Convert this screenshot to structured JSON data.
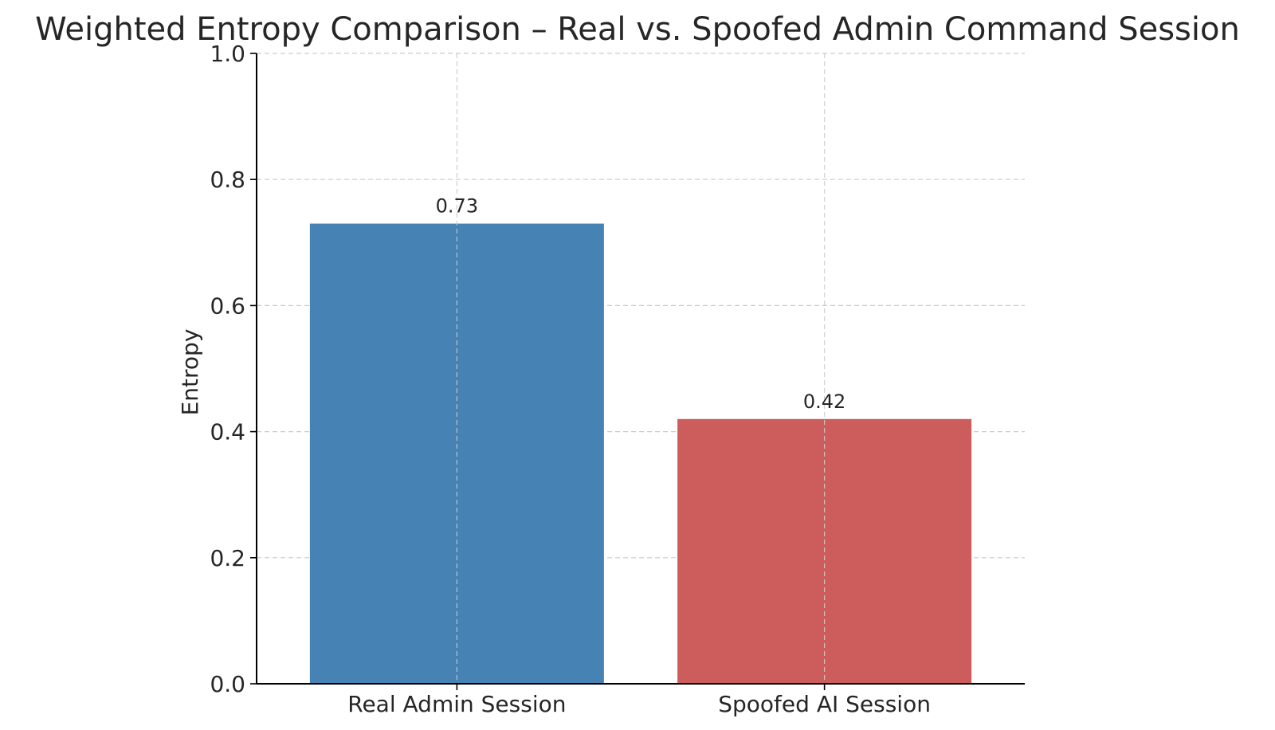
{
  "chart_data": {
    "type": "bar",
    "title": "Weighted Entropy Comparison – Real vs. Spoofed Admin Command Session",
    "xlabel": "",
    "ylabel": "Entropy",
    "categories": [
      "Real Admin Session",
      "Spoofed AI Session"
    ],
    "values": [
      0.73,
      0.42
    ],
    "value_labels": [
      "0.73",
      "0.42"
    ],
    "colors": [
      "#4682b4",
      "#cd5c5c"
    ],
    "ylim": [
      0,
      1.0
    ],
    "yticks": [
      0.0,
      0.2,
      0.4,
      0.6,
      0.8,
      1.0
    ],
    "ytick_labels": [
      "0.0",
      "0.2",
      "0.4",
      "0.6",
      "0.8",
      "1.0"
    ],
    "grid": true,
    "grid_style": "dashed"
  }
}
